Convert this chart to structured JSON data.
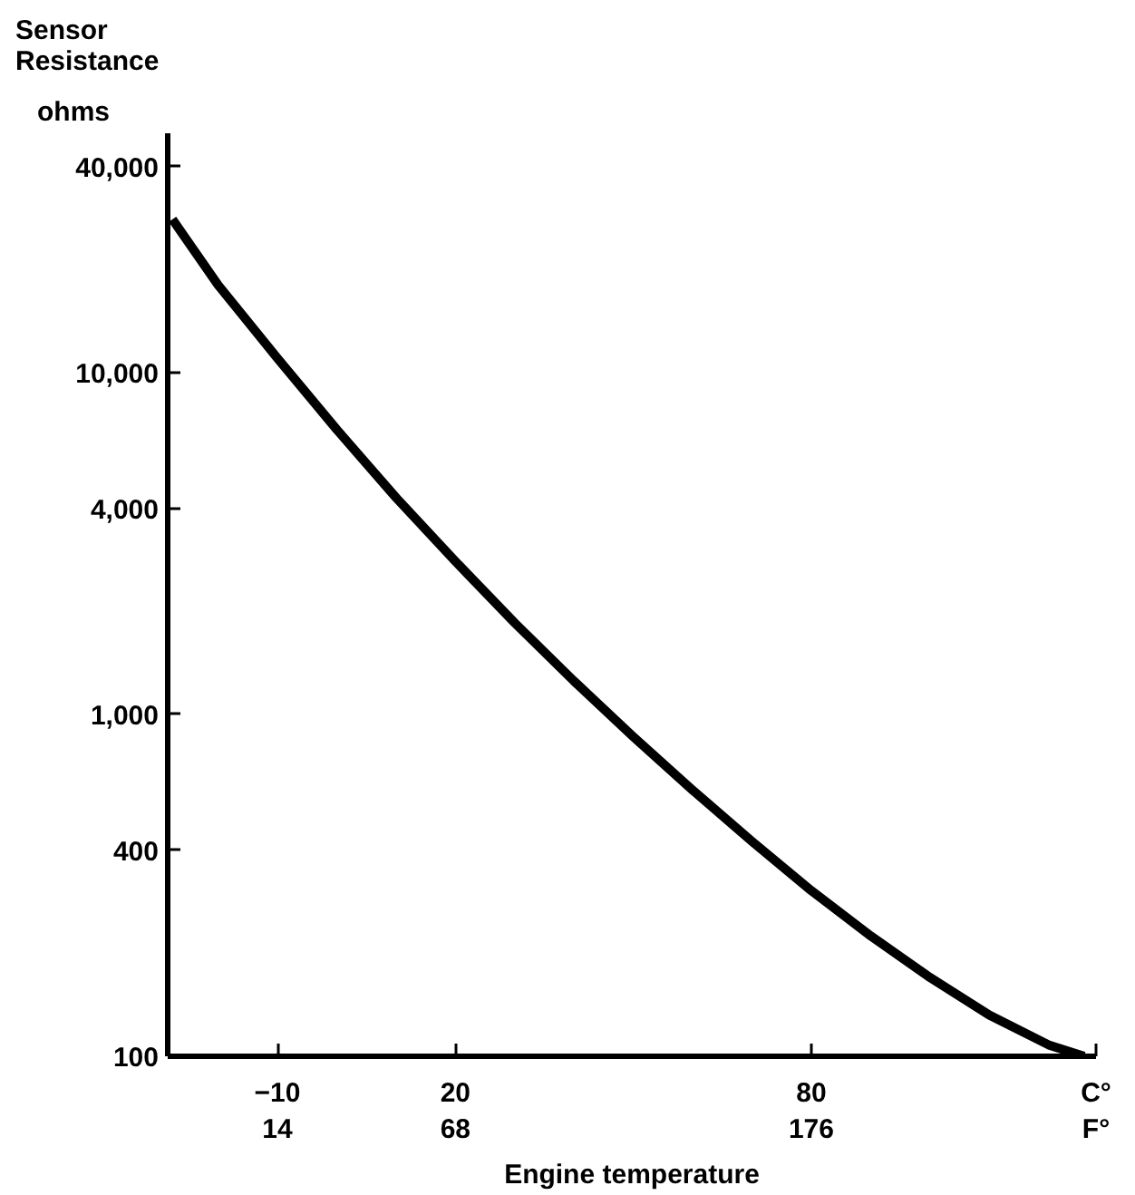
{
  "chart_data": {
    "type": "line",
    "title": "Sensor Resistance",
    "ylabel": "ohms",
    "xlabel": "Engine temperature",
    "x": [
      -27.7,
      -20,
      -10,
      0,
      10,
      20,
      30,
      40,
      50,
      60,
      70,
      80,
      90,
      100,
      110,
      120,
      126
    ],
    "series": [
      {
        "color": "#000000",
        "values": [
          28000,
          18000,
          11000,
          6800,
          4300,
          2800,
          1850,
          1250,
          860,
          600,
          425,
          305,
          225,
          170,
          132,
          108,
          100
        ]
      }
    ],
    "log": "y",
    "xlim": [
      -28.5,
      128
    ],
    "xticks": [
      -10,
      20,
      80,
      {
        "value": 128,
        "label": "C°"
      }
    ],
    "x2lim": [
      -19.3,
      262.4
    ],
    "x2ticks": [
      14,
      68,
      176,
      {
        "value": 262.4,
        "label": "F°"
      }
    ],
    "ylim": [
      100,
      50000
    ],
    "yticks": [
      {
        "value": 100,
        "label": "100"
      },
      {
        "value": 400,
        "label": "400"
      },
      {
        "value": 1000,
        "label": "1,000"
      },
      {
        "value": 4000,
        "label": "4,000"
      },
      {
        "value": 10000,
        "label": "10,000"
      },
      {
        "value": 40000,
        "label": "40,000"
      }
    ],
    "grid": false,
    "line_style": "solid",
    "marker": "none"
  }
}
